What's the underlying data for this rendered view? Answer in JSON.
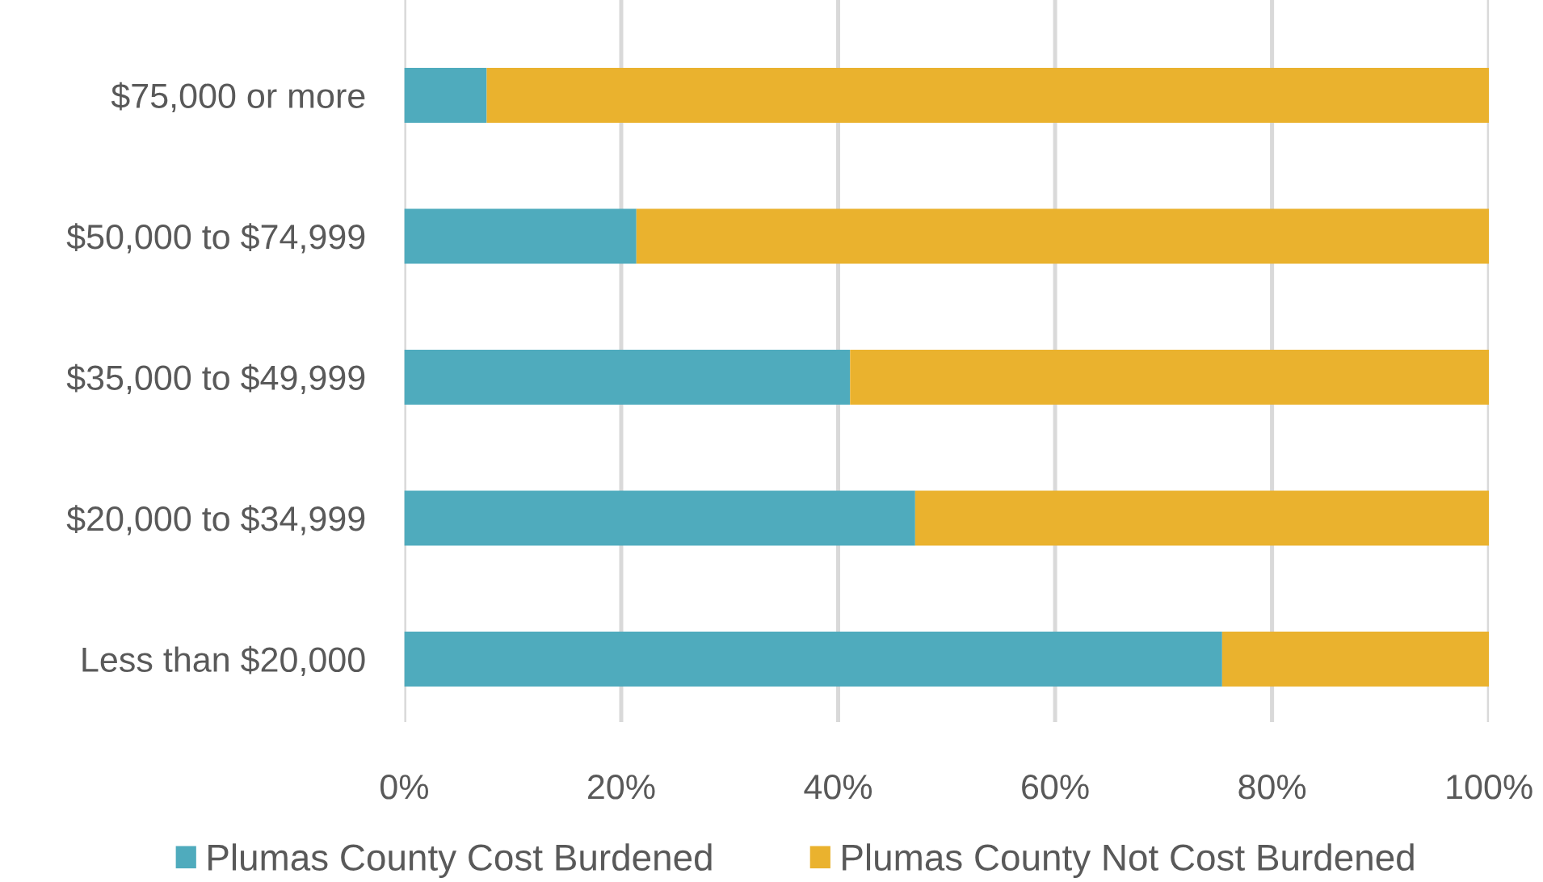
{
  "chart_data": {
    "type": "bar",
    "orientation": "horizontal",
    "stacked": true,
    "categories": [
      "$75,000 or more",
      "$50,000 to $74,999",
      "$35,000 to $49,999",
      "$20,000 to $34,999",
      "Less than $20,000"
    ],
    "series": [
      {
        "name": "Plumas County Cost Burdened",
        "color": "#4fabbd",
        "values": [
          7.6,
          21.4,
          41.1,
          47.1,
          75.4
        ]
      },
      {
        "name": "Plumas County Not Cost Burdened",
        "color": "#eab22e",
        "values": [
          92.4,
          78.6,
          58.9,
          52.9,
          24.6
        ]
      }
    ],
    "xlim": [
      0,
      100
    ],
    "xticks": [
      {
        "value": 0,
        "label": "0%"
      },
      {
        "value": 20,
        "label": "20%"
      },
      {
        "value": 40,
        "label": "40%"
      },
      {
        "value": 60,
        "label": "60%"
      },
      {
        "value": 80,
        "label": "80%"
      },
      {
        "value": 100,
        "label": "100%"
      }
    ],
    "grid": "x",
    "legend": "bottom"
  }
}
